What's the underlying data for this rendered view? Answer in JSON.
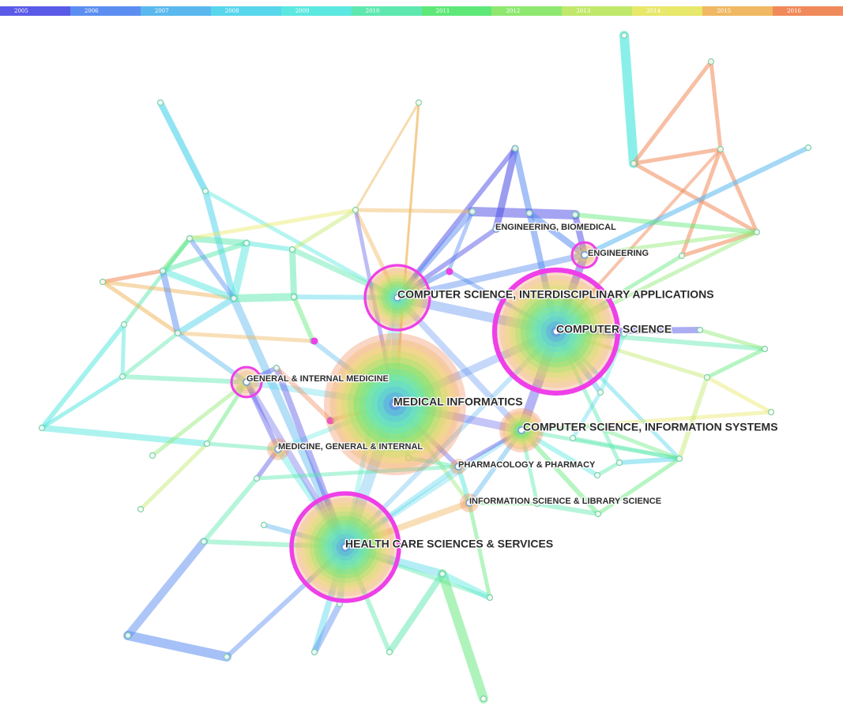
{
  "timeline": {
    "slices": [
      {
        "label": "2005",
        "color": "#5a5ae8"
      },
      {
        "label": "2006",
        "color": "#5b8ef0"
      },
      {
        "label": "2007",
        "color": "#5ab8ee"
      },
      {
        "label": "2008",
        "color": "#58d6ec"
      },
      {
        "label": "2009",
        "color": "#5ae8e0"
      },
      {
        "label": "2010",
        "color": "#5ee8b0"
      },
      {
        "label": "2011",
        "color": "#5ee878"
      },
      {
        "label": "2012",
        "color": "#8ee870"
      },
      {
        "label": "2013",
        "color": "#c0e86a"
      },
      {
        "label": "2014",
        "color": "#e8e86a"
      },
      {
        "label": "2015",
        "color": "#f0b862"
      },
      {
        "label": "2016",
        "color": "#f08a5a"
      }
    ]
  },
  "colors": {
    "centrality_ring": "#ee3fe8",
    "label_text": "#2b2b2b"
  },
  "nodes": [
    {
      "id": "medical_informatics",
      "label": "MEDICAL INFORMATICS",
      "rings": 12,
      "importance": 5
    },
    {
      "id": "computer_science",
      "label": "COMPUTER SCIENCE",
      "rings": 12,
      "importance": 5,
      "central": true
    },
    {
      "id": "health_care",
      "label": "HEALTH CARE SCIENCES & SERVICES",
      "rings": 12,
      "importance": 5,
      "central": true
    },
    {
      "id": "cs_interdisciplinary",
      "label": "COMPUTER SCIENCE, INTERDISCIPLINARY APPLICATIONS",
      "rings": 10,
      "importance": 4,
      "central": true
    },
    {
      "id": "cs_information_systems",
      "label": "COMPUTER SCIENCE, INFORMATION SYSTEMS",
      "rings": 8,
      "importance": 3
    },
    {
      "id": "engineering",
      "label": "ENGINEERING",
      "rings": 4,
      "importance": 2,
      "central": true
    },
    {
      "id": "engineering_biomedical",
      "label": "ENGINEERING, BIOMEDICAL",
      "rings": 1,
      "importance": 1
    },
    {
      "id": "general_internal_medicine",
      "label": "GENERAL & INTERNAL MEDICINE",
      "rings": 4,
      "importance": 2,
      "central": true
    },
    {
      "id": "medicine_general_internal",
      "label": "MEDICINE, GENERAL & INTERNAL",
      "rings": 4,
      "importance": 2
    },
    {
      "id": "pharmacology",
      "label": "PHARMACOLOGY & PHARMACY",
      "rings": 3,
      "importance": 1
    },
    {
      "id": "information_science_library",
      "label": "INFORMATION SCIENCE & LIBRARY SCIENCE",
      "rings": 3,
      "importance": 1
    }
  ]
}
